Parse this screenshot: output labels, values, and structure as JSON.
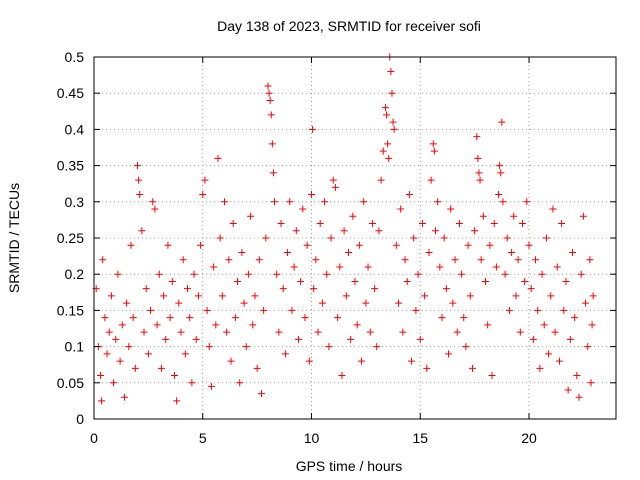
{
  "chart_data": {
    "type": "scatter",
    "title": "Day 138 of 2023, SRMTID for receiver sofi",
    "xlabel": "GPS time / hours",
    "ylabel": "SRMTID / TECUs",
    "xlim": [
      0,
      24
    ],
    "ylim": [
      0,
      0.5
    ],
    "x_ticks": [
      0,
      5,
      10,
      15,
      20
    ],
    "y_ticks": [
      0,
      0.05,
      0.1,
      0.15,
      0.2,
      0.25,
      0.3,
      0.35,
      0.4,
      0.45,
      0.5
    ],
    "x_tick_labels": [
      "0",
      "5",
      "10",
      "15",
      "20"
    ],
    "y_tick_labels": [
      "0",
      "0.05",
      "0.1",
      "0.15",
      "0.2",
      "0.25",
      "0.3",
      "0.35",
      "0.4",
      "0.45",
      "0.5"
    ],
    "grid": true,
    "marker": "plus",
    "marker_color": "#ff0000",
    "series": [
      {
        "name": "SRMTID",
        "points": [
          [
            0.1,
            0.18
          ],
          [
            0.2,
            0.1
          ],
          [
            0.3,
            0.06
          ],
          [
            0.35,
            0.025
          ],
          [
            0.4,
            0.22
          ],
          [
            0.5,
            0.14
          ],
          [
            0.6,
            0.09
          ],
          [
            0.7,
            0.12
          ],
          [
            0.8,
            0.17
          ],
          [
            0.9,
            0.05
          ],
          [
            1.0,
            0.11
          ],
          [
            1.1,
            0.2
          ],
          [
            1.2,
            0.08
          ],
          [
            1.3,
            0.13
          ],
          [
            1.4,
            0.03
          ],
          [
            1.5,
            0.16
          ],
          [
            1.6,
            0.1
          ],
          [
            1.7,
            0.24
          ],
          [
            1.8,
            0.14
          ],
          [
            1.9,
            0.07
          ],
          [
            2.0,
            0.35
          ],
          [
            2.05,
            0.33
          ],
          [
            2.1,
            0.31
          ],
          [
            2.2,
            0.26
          ],
          [
            2.3,
            0.12
          ],
          [
            2.4,
            0.18
          ],
          [
            2.5,
            0.09
          ],
          [
            2.6,
            0.15
          ],
          [
            2.7,
            0.3
          ],
          [
            2.8,
            0.29
          ],
          [
            2.9,
            0.13
          ],
          [
            3.0,
            0.2
          ],
          [
            3.1,
            0.07
          ],
          [
            3.2,
            0.17
          ],
          [
            3.3,
            0.11
          ],
          [
            3.4,
            0.24
          ],
          [
            3.5,
            0.14
          ],
          [
            3.6,
            0.19
          ],
          [
            3.7,
            0.06
          ],
          [
            3.8,
            0.025
          ],
          [
            3.9,
            0.16
          ],
          [
            4.0,
            0.12
          ],
          [
            4.1,
            0.22
          ],
          [
            4.2,
            0.09
          ],
          [
            4.3,
            0.18
          ],
          [
            4.4,
            0.14
          ],
          [
            4.5,
            0.05
          ],
          [
            4.6,
            0.2
          ],
          [
            4.7,
            0.11
          ],
          [
            4.8,
            0.17
          ],
          [
            4.9,
            0.24
          ],
          [
            5.0,
            0.31
          ],
          [
            5.1,
            0.33
          ],
          [
            5.2,
            0.15
          ],
          [
            5.3,
            0.1
          ],
          [
            5.4,
            0.045
          ],
          [
            5.5,
            0.21
          ],
          [
            5.6,
            0.13
          ],
          [
            5.7,
            0.36
          ],
          [
            5.8,
            0.25
          ],
          [
            5.9,
            0.17
          ],
          [
            6.0,
            0.3
          ],
          [
            6.1,
            0.12
          ],
          [
            6.2,
            0.22
          ],
          [
            6.3,
            0.08
          ],
          [
            6.4,
            0.27
          ],
          [
            6.5,
            0.14
          ],
          [
            6.6,
            0.19
          ],
          [
            6.7,
            0.05
          ],
          [
            6.8,
            0.23
          ],
          [
            6.9,
            0.16
          ],
          [
            7.0,
            0.1
          ],
          [
            7.1,
            0.2
          ],
          [
            7.2,
            0.28
          ],
          [
            7.3,
            0.13
          ],
          [
            7.4,
            0.17
          ],
          [
            7.5,
            0.07
          ],
          [
            7.6,
            0.22
          ],
          [
            7.7,
            0.035
          ],
          [
            7.8,
            0.15
          ],
          [
            7.9,
            0.25
          ],
          [
            8.0,
            0.46
          ],
          [
            8.05,
            0.45
          ],
          [
            8.1,
            0.44
          ],
          [
            8.15,
            0.42
          ],
          [
            8.2,
            0.38
          ],
          [
            8.25,
            0.34
          ],
          [
            8.3,
            0.3
          ],
          [
            8.4,
            0.2
          ],
          [
            8.5,
            0.12
          ],
          [
            8.6,
            0.27
          ],
          [
            8.7,
            0.18
          ],
          [
            8.8,
            0.09
          ],
          [
            8.9,
            0.23
          ],
          [
            9.0,
            0.3
          ],
          [
            9.1,
            0.15
          ],
          [
            9.2,
            0.21
          ],
          [
            9.3,
            0.26
          ],
          [
            9.4,
            0.11
          ],
          [
            9.5,
            0.19
          ],
          [
            9.6,
            0.29
          ],
          [
            9.7,
            0.14
          ],
          [
            9.8,
            0.24
          ],
          [
            9.9,
            0.08
          ],
          [
            10.0,
            0.31
          ],
          [
            10.05,
            0.4
          ],
          [
            10.1,
            0.18
          ],
          [
            10.2,
            0.22
          ],
          [
            10.3,
            0.12
          ],
          [
            10.4,
            0.27
          ],
          [
            10.5,
            0.16
          ],
          [
            10.6,
            0.3
          ],
          [
            10.7,
            0.2
          ],
          [
            10.8,
            0.1
          ],
          [
            10.9,
            0.25
          ],
          [
            11.0,
            0.33
          ],
          [
            11.1,
            0.32
          ],
          [
            11.2,
            0.14
          ],
          [
            11.3,
            0.21
          ],
          [
            11.4,
            0.06
          ],
          [
            11.5,
            0.26
          ],
          [
            11.6,
            0.17
          ],
          [
            11.7,
            0.23
          ],
          [
            11.8,
            0.11
          ],
          [
            11.9,
            0.28
          ],
          [
            12.0,
            0.19
          ],
          [
            12.1,
            0.13
          ],
          [
            12.2,
            0.24
          ],
          [
            12.3,
            0.08
          ],
          [
            12.4,
            0.3
          ],
          [
            12.5,
            0.16
          ],
          [
            12.6,
            0.21
          ],
          [
            12.7,
            0.12
          ],
          [
            12.8,
            0.27
          ],
          [
            12.9,
            0.18
          ],
          [
            13.0,
            0.1
          ],
          [
            13.1,
            0.26
          ],
          [
            13.2,
            0.33
          ],
          [
            13.3,
            0.37
          ],
          [
            13.4,
            0.43
          ],
          [
            13.45,
            0.42
          ],
          [
            13.5,
            0.38
          ],
          [
            13.55,
            0.36
          ],
          [
            13.6,
            0.5
          ],
          [
            13.65,
            0.48
          ],
          [
            13.7,
            0.45
          ],
          [
            13.75,
            0.41
          ],
          [
            13.8,
            0.4
          ],
          [
            13.9,
            0.24
          ],
          [
            14.0,
            0.16
          ],
          [
            14.1,
            0.29
          ],
          [
            14.2,
            0.12
          ],
          [
            14.3,
            0.22
          ],
          [
            14.4,
            0.19
          ],
          [
            14.5,
            0.31
          ],
          [
            14.6,
            0.08
          ],
          [
            14.7,
            0.25
          ],
          [
            14.8,
            0.15
          ],
          [
            14.9,
            0.2
          ],
          [
            15.0,
            0.11
          ],
          [
            15.1,
            0.27
          ],
          [
            15.2,
            0.17
          ],
          [
            15.3,
            0.07
          ],
          [
            15.4,
            0.23
          ],
          [
            15.5,
            0.33
          ],
          [
            15.6,
            0.38
          ],
          [
            15.65,
            0.37
          ],
          [
            15.7,
            0.26
          ],
          [
            15.8,
            0.3
          ],
          [
            15.9,
            0.21
          ],
          [
            16.0,
            0.14
          ],
          [
            16.1,
            0.25
          ],
          [
            16.2,
            0.18
          ],
          [
            16.3,
            0.09
          ],
          [
            16.4,
            0.29
          ],
          [
            16.5,
            0.16
          ],
          [
            16.6,
            0.22
          ],
          [
            16.7,
            0.12
          ],
          [
            16.8,
            0.27
          ],
          [
            16.9,
            0.2
          ],
          [
            17.0,
            0.14
          ],
          [
            17.1,
            0.1
          ],
          [
            17.2,
            0.24
          ],
          [
            17.3,
            0.17
          ],
          [
            17.4,
            0.07
          ],
          [
            17.5,
            0.26
          ],
          [
            17.6,
            0.39
          ],
          [
            17.65,
            0.36
          ],
          [
            17.7,
            0.34
          ],
          [
            17.75,
            0.33
          ],
          [
            17.8,
            0.22
          ],
          [
            17.9,
            0.28
          ],
          [
            18.0,
            0.19
          ],
          [
            18.1,
            0.13
          ],
          [
            18.2,
            0.24
          ],
          [
            18.3,
            0.06
          ],
          [
            18.4,
            0.27
          ],
          [
            18.5,
            0.21
          ],
          [
            18.6,
            0.31
          ],
          [
            18.65,
            0.35
          ],
          [
            18.7,
            0.34
          ],
          [
            18.75,
            0.41
          ],
          [
            18.8,
            0.3
          ],
          [
            18.9,
            0.2
          ],
          [
            19.0,
            0.25
          ],
          [
            19.1,
            0.15
          ],
          [
            19.2,
            0.23
          ],
          [
            19.3,
            0.28
          ],
          [
            19.4,
            0.17
          ],
          [
            19.5,
            0.22
          ],
          [
            19.6,
            0.12
          ],
          [
            19.7,
            0.27
          ],
          [
            19.8,
            0.19
          ],
          [
            19.9,
            0.3
          ],
          [
            20.0,
            0.24
          ],
          [
            20.1,
            0.18
          ],
          [
            20.2,
            0.11
          ],
          [
            20.3,
            0.22
          ],
          [
            20.4,
            0.15
          ],
          [
            20.5,
            0.07
          ],
          [
            20.6,
            0.2
          ],
          [
            20.7,
            0.13
          ],
          [
            20.8,
            0.25
          ],
          [
            20.9,
            0.09
          ],
          [
            21.0,
            0.17
          ],
          [
            21.1,
            0.29
          ],
          [
            21.2,
            0.12
          ],
          [
            21.3,
            0.21
          ],
          [
            21.4,
            0.08
          ],
          [
            21.5,
            0.27
          ],
          [
            21.6,
            0.15
          ],
          [
            21.7,
            0.19
          ],
          [
            21.8,
            0.04
          ],
          [
            21.9,
            0.11
          ],
          [
            22.0,
            0.23
          ],
          [
            22.1,
            0.14
          ],
          [
            22.2,
            0.06
          ],
          [
            22.3,
            0.03
          ],
          [
            22.4,
            0.2
          ],
          [
            22.5,
            0.28
          ],
          [
            22.6,
            0.16
          ],
          [
            22.7,
            0.1
          ],
          [
            22.8,
            0.22
          ],
          [
            22.85,
            0.05
          ],
          [
            22.9,
            0.13
          ],
          [
            22.95,
            0.17
          ]
        ]
      }
    ]
  }
}
